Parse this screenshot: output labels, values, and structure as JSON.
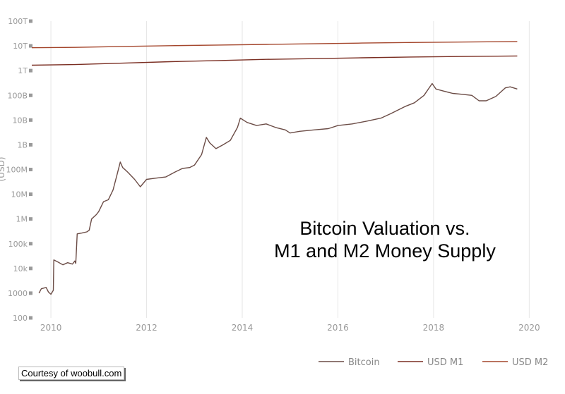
{
  "chart_data": {
    "type": "line",
    "title": [
      "Bitcoin Valuation vs.",
      "M1 and M2 Money Supply"
    ],
    "ylabel": "(USD)",
    "y_scale": "log",
    "ylim": [
      100,
      100000000000000
    ],
    "y_ticks": [
      {
        "value": 100,
        "label": "100"
      },
      {
        "value": 1000,
        "label": "1000"
      },
      {
        "value": 10000,
        "label": "10k"
      },
      {
        "value": 100000,
        "label": "100k"
      },
      {
        "value": 1000000,
        "label": "1M"
      },
      {
        "value": 10000000,
        "label": "10M"
      },
      {
        "value": 100000000,
        "label": "100M"
      },
      {
        "value": 1000000000,
        "label": "1B"
      },
      {
        "value": 10000000000,
        "label": "10B"
      },
      {
        "value": 100000000000,
        "label": "100B"
      },
      {
        "value": 1000000000000,
        "label": "1T"
      },
      {
        "value": 10000000000000,
        "label": "10T"
      },
      {
        "value": 100000000000000,
        "label": "100T"
      }
    ],
    "xlim": [
      2009.6,
      2020.6
    ],
    "x_ticks": [
      {
        "value": 2010,
        "label": "2010"
      },
      {
        "value": 2012,
        "label": "2012"
      },
      {
        "value": 2014,
        "label": "2014"
      },
      {
        "value": 2016,
        "label": "2016"
      },
      {
        "value": 2018,
        "label": "2018"
      },
      {
        "value": 2020,
        "label": "2020"
      }
    ],
    "grid": "vertical",
    "legend": "bottom-right",
    "series": [
      {
        "name": "Bitcoin",
        "color": "#6b4c46",
        "points": [
          [
            2009.75,
            1000
          ],
          [
            2009.8,
            1500
          ],
          [
            2009.9,
            1700
          ],
          [
            2009.95,
            1100
          ],
          [
            2010.0,
            900
          ],
          [
            2010.05,
            1300
          ],
          [
            2010.06,
            22000
          ],
          [
            2010.15,
            18000
          ],
          [
            2010.25,
            14000
          ],
          [
            2010.35,
            17000
          ],
          [
            2010.45,
            15000
          ],
          [
            2010.5,
            20000
          ],
          [
            2010.52,
            16000
          ],
          [
            2010.55,
            250000
          ],
          [
            2010.65,
            270000
          ],
          [
            2010.75,
            300000
          ],
          [
            2010.8,
            350000
          ],
          [
            2010.85,
            1000000
          ],
          [
            2010.95,
            1500000
          ],
          [
            2011.0,
            2000000
          ],
          [
            2011.1,
            5000000
          ],
          [
            2011.2,
            6000000
          ],
          [
            2011.3,
            15000000
          ],
          [
            2011.38,
            60000000
          ],
          [
            2011.45,
            200000000
          ],
          [
            2011.5,
            120000000
          ],
          [
            2011.6,
            80000000
          ],
          [
            2011.75,
            40000000
          ],
          [
            2011.87,
            20000000
          ],
          [
            2012.0,
            40000000
          ],
          [
            2012.2,
            45000000
          ],
          [
            2012.4,
            50000000
          ],
          [
            2012.6,
            80000000
          ],
          [
            2012.75,
            110000000
          ],
          [
            2012.9,
            120000000
          ],
          [
            2013.0,
            150000000
          ],
          [
            2013.15,
            400000000
          ],
          [
            2013.25,
            2000000000
          ],
          [
            2013.32,
            1200000000
          ],
          [
            2013.45,
            700000000
          ],
          [
            2013.6,
            1000000000
          ],
          [
            2013.75,
            1500000000
          ],
          [
            2013.9,
            5000000000
          ],
          [
            2013.96,
            12000000000
          ],
          [
            2014.1,
            8000000000
          ],
          [
            2014.3,
            6000000000
          ],
          [
            2014.5,
            7000000000
          ],
          [
            2014.7,
            5000000000
          ],
          [
            2014.9,
            4000000000
          ],
          [
            2015.0,
            3000000000
          ],
          [
            2015.2,
            3500000000
          ],
          [
            2015.5,
            4000000000
          ],
          [
            2015.8,
            4500000000
          ],
          [
            2016.0,
            6000000000
          ],
          [
            2016.3,
            7000000000
          ],
          [
            2016.6,
            9000000000
          ],
          [
            2016.9,
            12000000000
          ],
          [
            2017.1,
            18000000000
          ],
          [
            2017.4,
            35000000000
          ],
          [
            2017.6,
            50000000000
          ],
          [
            2017.8,
            100000000000
          ],
          [
            2017.97,
            300000000000
          ],
          [
            2018.05,
            180000000000
          ],
          [
            2018.2,
            150000000000
          ],
          [
            2018.4,
            120000000000
          ],
          [
            2018.6,
            110000000000
          ],
          [
            2018.8,
            100000000000
          ],
          [
            2018.95,
            60000000000
          ],
          [
            2019.1,
            60000000000
          ],
          [
            2019.3,
            90000000000
          ],
          [
            2019.5,
            200000000000
          ],
          [
            2019.6,
            220000000000
          ],
          [
            2019.75,
            180000000000
          ]
        ]
      },
      {
        "name": "USD M1",
        "color": "#7a2e22",
        "points": [
          [
            2009.6,
            1650000000000
          ],
          [
            2010.5,
            1750000000000
          ],
          [
            2011.5,
            2000000000000
          ],
          [
            2012.5,
            2300000000000
          ],
          [
            2013.5,
            2550000000000
          ],
          [
            2014.5,
            2850000000000
          ],
          [
            2015.5,
            3050000000000
          ],
          [
            2016.5,
            3300000000000
          ],
          [
            2017.5,
            3550000000000
          ],
          [
            2018.5,
            3700000000000
          ],
          [
            2019.75,
            3900000000000
          ]
        ]
      },
      {
        "name": "USD M2",
        "color": "#a4462c",
        "points": [
          [
            2009.6,
            8400000000000
          ],
          [
            2010.5,
            8700000000000
          ],
          [
            2011.5,
            9500000000000
          ],
          [
            2012.5,
            10200000000000
          ],
          [
            2013.5,
            10800000000000
          ],
          [
            2014.5,
            11500000000000
          ],
          [
            2015.5,
            12200000000000
          ],
          [
            2016.5,
            13000000000000
          ],
          [
            2017.5,
            13700000000000
          ],
          [
            2018.5,
            14200000000000
          ],
          [
            2019.75,
            15000000000000
          ]
        ]
      }
    ]
  },
  "credit": "Courtesy of woobull.com"
}
